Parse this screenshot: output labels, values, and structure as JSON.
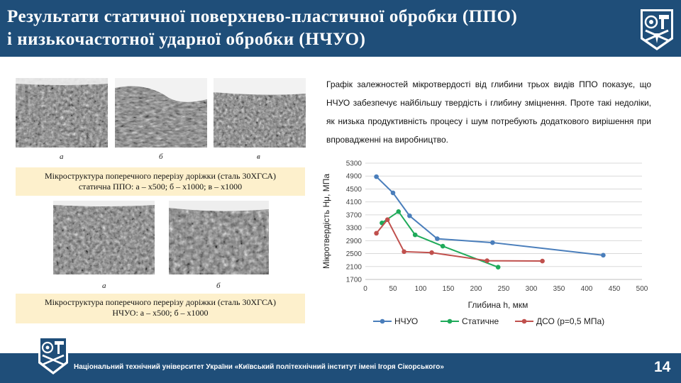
{
  "header": {
    "title_line1": "Результати статичної поверхнево-пластичної обробки (ППО)",
    "title_line2": "і низькочастотної ударної обробки (НЧУО)"
  },
  "colors": {
    "header_bg": "#1f4e79",
    "caption_bg": "#fdf0cc",
    "nchuo": "#4a7ebb",
    "static": "#1faa5a",
    "dso": "#c0504d"
  },
  "micrographs_top": {
    "labels": [
      "а",
      "б",
      "в"
    ],
    "caption_line1": "Мікроструктура поперечного перерізу доріжки (сталь 30ХГСА)",
    "caption_line2": "статична ППО: а – х500;  б – х1000;  в – х1000"
  },
  "micrographs_bottom": {
    "labels": [
      "а",
      "б"
    ],
    "caption_line1": "Мікроструктура поперечного перерізу доріжки (сталь 30ХГСА)",
    "caption_line2": "НЧУО: а – х500;  б – х1000"
  },
  "description": "Графік залежностей мікротвердості від глибини  трьох видів ППО показує, що НЧУО забезпечує найбільшу твердість і глибину зміцнення. Проте такі недоліки, як низька продуктивність процесу і шум потребують додаткового вирішення  при впровадженні  на виробництво.",
  "chart_data": {
    "type": "line",
    "xlabel": "Глибина h, мкм",
    "ylabel": "Мікротвердість Hμ, МПа",
    "xlim": [
      0,
      500
    ],
    "ylim": [
      1700,
      5300
    ],
    "xticks": [
      "0",
      "50",
      "100",
      "150",
      "200",
      "250",
      "300",
      "350",
      "400",
      "450",
      "500"
    ],
    "yticks": [
      "1700",
      "2100",
      "2500",
      "2900",
      "3300",
      "3700",
      "4100",
      "4500",
      "4900",
      "5300"
    ],
    "grid": "horizontal",
    "legend": "bottom",
    "series": [
      {
        "name": "НЧУО",
        "color": "#4a7ebb",
        "x": [
          20,
          50,
          80,
          130,
          230,
          430
        ],
        "y": [
          4880,
          4380,
          3670,
          2960,
          2840,
          2450
        ]
      },
      {
        "name": "Статичне",
        "color": "#1faa5a",
        "x": [
          30,
          60,
          90,
          140,
          240
        ],
        "y": [
          3450,
          3800,
          3080,
          2730,
          2080
        ]
      },
      {
        "name": "ДСО (р=0,5 МПа)",
        "color": "#c0504d",
        "x": [
          20,
          40,
          70,
          120,
          220,
          320
        ],
        "y": [
          3130,
          3550,
          2560,
          2530,
          2280,
          2270
        ]
      }
    ]
  },
  "footer": {
    "org": "Національний технічний університет України «Київський політехнічний інститут імені Ігоря Сікорського»",
    "page": "14"
  }
}
